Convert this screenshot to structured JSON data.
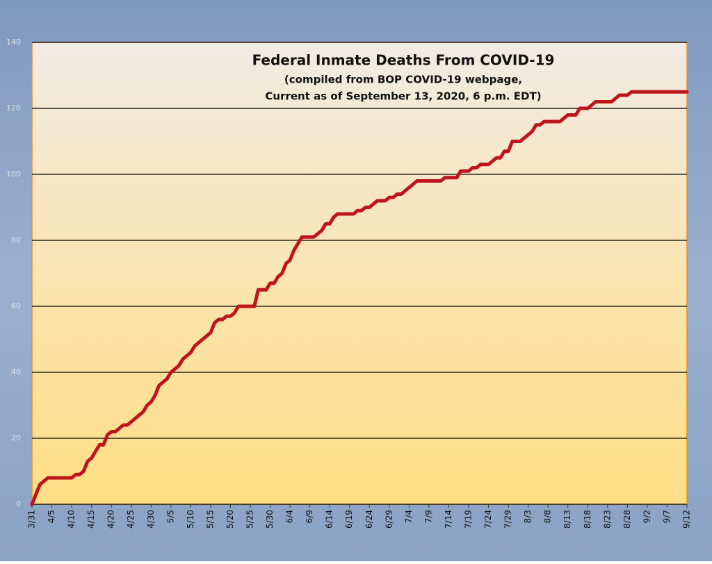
{
  "chart_data": {
    "type": "line",
    "title": "Federal Inmate Deaths From COVID-19",
    "subtitle": [
      "(compiled from BOP COVID-19 webpage,",
      "Current as of September 13, 2020, 6 p.m. EDT)"
    ],
    "categories": [
      "3/31",
      null,
      null,
      null,
      null,
      "4/5",
      null,
      null,
      null,
      null,
      "4/10",
      null,
      null,
      null,
      null,
      "4/15",
      null,
      null,
      null,
      null,
      "4/20",
      null,
      null,
      null,
      null,
      "4/25",
      null,
      null,
      null,
      null,
      "4/30",
      null,
      null,
      null,
      null,
      "5/5",
      null,
      null,
      null,
      null,
      "5/10",
      null,
      null,
      null,
      null,
      "5/15",
      null,
      null,
      null,
      null,
      "5/20",
      null,
      null,
      null,
      null,
      "5/25",
      null,
      null,
      null,
      null,
      "5/30",
      null,
      null,
      null,
      null,
      "6/4",
      null,
      null,
      null,
      null,
      "6/9",
      null,
      null,
      null,
      null,
      "6/14",
      null,
      null,
      null,
      null,
      "6/19",
      null,
      null,
      null,
      null,
      "6/24",
      null,
      null,
      null,
      null,
      "6/29",
      null,
      null,
      null,
      null,
      "7/4",
      null,
      null,
      null,
      null,
      "7/9",
      null,
      null,
      null,
      null,
      "7/14",
      null,
      null,
      null,
      null,
      "7/19",
      null,
      null,
      null,
      null,
      "7/24",
      null,
      null,
      null,
      null,
      "7/29",
      null,
      null,
      null,
      null,
      "8/3",
      null,
      null,
      null,
      null,
      "8/8",
      null,
      null,
      null,
      null,
      "8/13",
      null,
      null,
      null,
      null,
      "8/18",
      null,
      null,
      null,
      null,
      "8/23",
      null,
      null,
      null,
      null,
      "8/28",
      null,
      null,
      null,
      null,
      "9/2",
      null,
      null,
      null,
      null,
      "9/7",
      null,
      null,
      null,
      null,
      "9/12"
    ],
    "values": [
      0,
      3,
      6,
      7,
      8,
      8,
      8,
      8,
      8,
      8,
      8,
      9,
      9,
      10,
      13,
      14,
      16,
      18,
      18,
      21,
      22,
      22,
      23,
      24,
      24,
      25,
      26,
      27,
      28,
      30,
      31,
      33,
      36,
      37,
      38,
      40,
      41,
      42,
      44,
      45,
      46,
      48,
      49,
      50,
      51,
      52,
      55,
      56,
      56,
      57,
      57,
      58,
      60,
      60,
      60,
      60,
      60,
      65,
      65,
      65,
      67,
      67,
      69,
      70,
      73,
      74,
      77,
      79,
      81,
      81,
      81,
      81,
      82,
      83,
      85,
      85,
      87,
      88,
      88,
      88,
      88,
      88,
      89,
      89,
      90,
      90,
      91,
      92,
      92,
      92,
      93,
      93,
      94,
      94,
      95,
      96,
      97,
      98,
      98,
      98,
      98,
      98,
      98,
      98,
      99,
      99,
      99,
      99,
      101,
      101,
      101,
      102,
      102,
      103,
      103,
      103,
      104,
      105,
      105,
      107,
      107,
      110,
      110,
      110,
      111,
      112,
      113,
      115,
      115,
      116,
      116,
      116,
      116,
      116,
      117,
      118,
      118,
      118,
      120,
      120,
      120,
      121,
      122,
      122,
      122,
      122,
      122,
      123,
      124,
      124,
      124,
      125,
      125,
      125,
      125,
      125,
      125,
      125,
      125,
      125,
      125,
      125,
      125,
      125,
      125,
      125
    ],
    "color": "#c0141c",
    "ylim": [
      0,
      140
    ],
    "yticks": [
      0,
      20,
      40,
      60,
      80,
      100,
      120,
      140
    ],
    "grid": true
  }
}
